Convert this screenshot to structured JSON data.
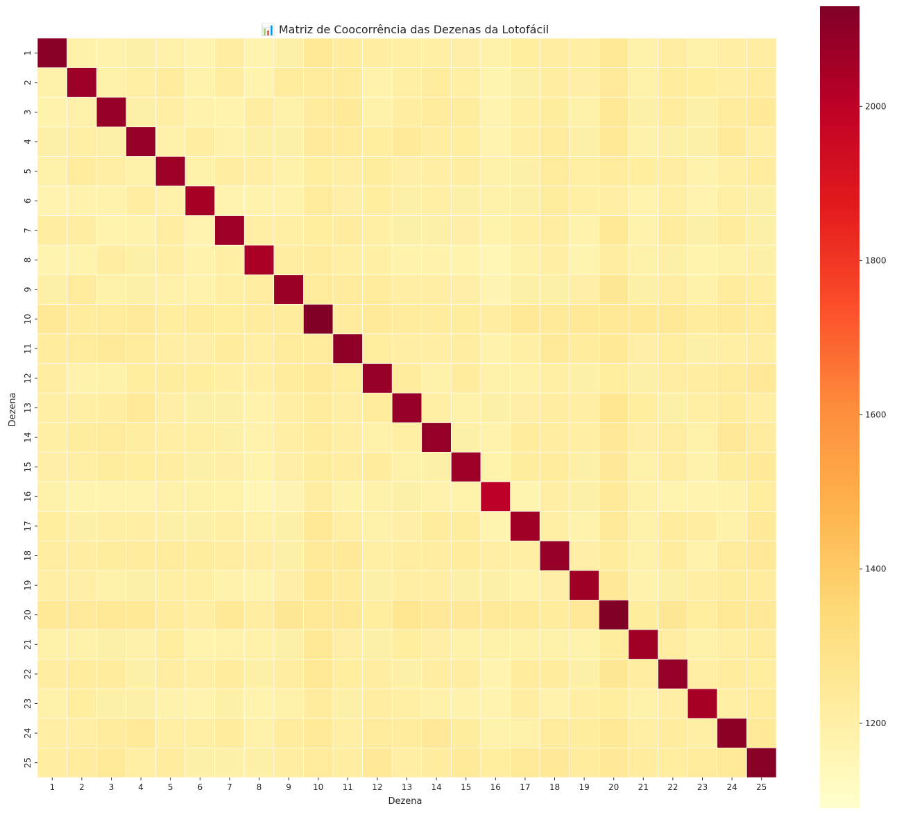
{
  "chart_data": {
    "type": "heatmap",
    "title": "📊 Matriz de Coocorrência das Dezenas da Lotofácil",
    "xlabel": "Dezena",
    "ylabel": "Dezena",
    "x_categories": [
      "1",
      "2",
      "3",
      "4",
      "5",
      "6",
      "7",
      "8",
      "9",
      "10",
      "11",
      "12",
      "13",
      "14",
      "15",
      "16",
      "17",
      "18",
      "19",
      "20",
      "21",
      "22",
      "23",
      "24",
      "25"
    ],
    "y_categories": [
      "1",
      "2",
      "3",
      "4",
      "5",
      "6",
      "7",
      "8",
      "9",
      "10",
      "11",
      "12",
      "13",
      "14",
      "15",
      "16",
      "17",
      "18",
      "19",
      "20",
      "21",
      "22",
      "23",
      "24",
      "25"
    ],
    "colormap": "YlOrRd",
    "vmin": 1090,
    "vmax": 2130,
    "colorbar_ticks": [
      1200,
      1400,
      1600,
      1800,
      2000
    ],
    "grid_line_color": "#ffffff",
    "diagonal": [
      2110,
      2070,
      2080,
      2085,
      2070,
      2050,
      2070,
      2040,
      2075,
      2130,
      2095,
      2080,
      2085,
      2085,
      2070,
      2000,
      2060,
      2085,
      2065,
      2130,
      2060,
      2085,
      2050,
      2105,
      2115
    ],
    "row_base": [
      1200,
      1210,
      1205,
      1212,
      1212,
      1192,
      1195,
      1185,
      1208,
      1262,
      1232,
      1205,
      1220,
      1222,
      1205,
      1168,
      1200,
      1210,
      1200,
      1268,
      1205,
      1218,
      1198,
      1225,
      1240
    ],
    "noise_amplitude": 22
  }
}
